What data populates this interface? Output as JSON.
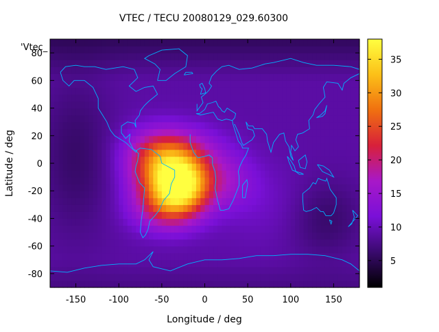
{
  "chart_data": {
    "type": "heatmap",
    "title": "VTEC / TECU 20080129_029.60300",
    "xlabel": "Longitude / deg",
    "ylabel": "Latitude / deg",
    "series_label": "'Vtec_",
    "xlim": [
      -180,
      180
    ],
    "ylim": [
      -90,
      90
    ],
    "xticks": [
      -150,
      -100,
      -50,
      0,
      50,
      100,
      150
    ],
    "yticks": [
      -80,
      -60,
      -40,
      -20,
      0,
      20,
      40,
      60,
      80
    ],
    "colorbar": {
      "min": 1,
      "max": 38,
      "ticks": [
        5,
        10,
        15,
        20,
        25,
        30,
        35
      ],
      "palette": [
        "#000000",
        "#3a0a6e",
        "#7a10d8",
        "#a818c8",
        "#d8203a",
        "#f07010",
        "#fcc018",
        "#ffff40"
      ]
    },
    "field": {
      "background": 9,
      "features": [
        {
          "name": "equatorial-anomaly-main",
          "lon": -28,
          "lat": -14,
          "amplitude": 27,
          "sigma_lon": 22,
          "sigma_lat": 14
        },
        {
          "name": "anomaly-west",
          "lon": -58,
          "lat": -4,
          "amplitude": 12,
          "sigma_lon": 24,
          "sigma_lat": 16
        },
        {
          "name": "anomaly-north",
          "lon": -35,
          "lat": 10,
          "amplitude": 9,
          "sigma_lon": 34,
          "sigma_lat": 12
        },
        {
          "name": "anomaly-south",
          "lon": -45,
          "lat": -32,
          "amplitude": 10,
          "sigma_lon": 28,
          "sigma_lat": 12
        },
        {
          "name": "anomaly-east",
          "lon": 20,
          "lat": -12,
          "amplitude": 6,
          "sigma_lon": 26,
          "sigma_lat": 14
        },
        {
          "name": "pacific-low",
          "lon": -150,
          "lat": 5,
          "amplitude": -3,
          "sigma_lon": 30,
          "sigma_lat": 40
        },
        {
          "name": "australia-low",
          "lon": 140,
          "lat": -40,
          "amplitude": -3,
          "sigma_lon": 30,
          "sigma_lat": 20
        },
        {
          "name": "indian-ocean-high",
          "lon": 70,
          "lat": -30,
          "amplitude": 1.5,
          "sigma_lon": 40,
          "sigma_lat": 20
        }
      ]
    },
    "coastline_color": "#00b4ff"
  }
}
